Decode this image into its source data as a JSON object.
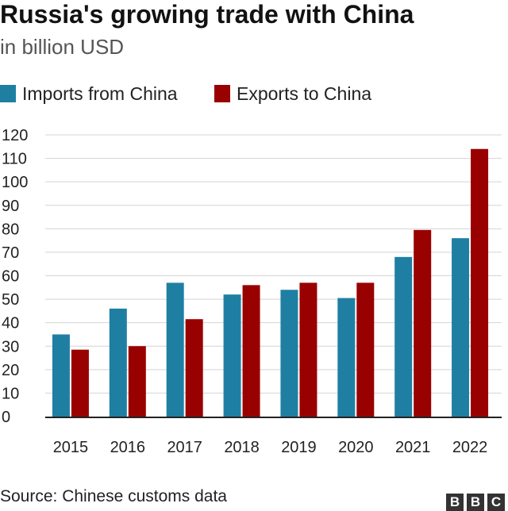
{
  "title": "Russia's growing trade with China",
  "subtitle": "in billion USD",
  "source": "Source: Chinese customs data",
  "logo": [
    "B",
    "B",
    "C"
  ],
  "colors": {
    "imports": "#1f7fa3",
    "exports": "#990000",
    "grid": "#d4d4d4",
    "baseline": "#222222"
  },
  "chart_data": {
    "type": "bar",
    "title": "Russia's growing trade with China",
    "subtitle": "in billion USD",
    "categories": [
      "2015",
      "2016",
      "2017",
      "2018",
      "2019",
      "2020",
      "2021",
      "2022"
    ],
    "series": [
      {
        "name": "Imports from China",
        "values": [
          35,
          46,
          57,
          52,
          54,
          50.5,
          68,
          76
        ]
      },
      {
        "name": "Exports to China",
        "values": [
          28.5,
          30,
          41.5,
          56,
          57,
          57,
          79.5,
          114
        ]
      }
    ],
    "ylim": [
      0,
      120
    ],
    "yticks": [
      0,
      10,
      20,
      30,
      40,
      50,
      60,
      70,
      80,
      90,
      100,
      110,
      120
    ],
    "grid": true,
    "legend_position": "top-left"
  }
}
